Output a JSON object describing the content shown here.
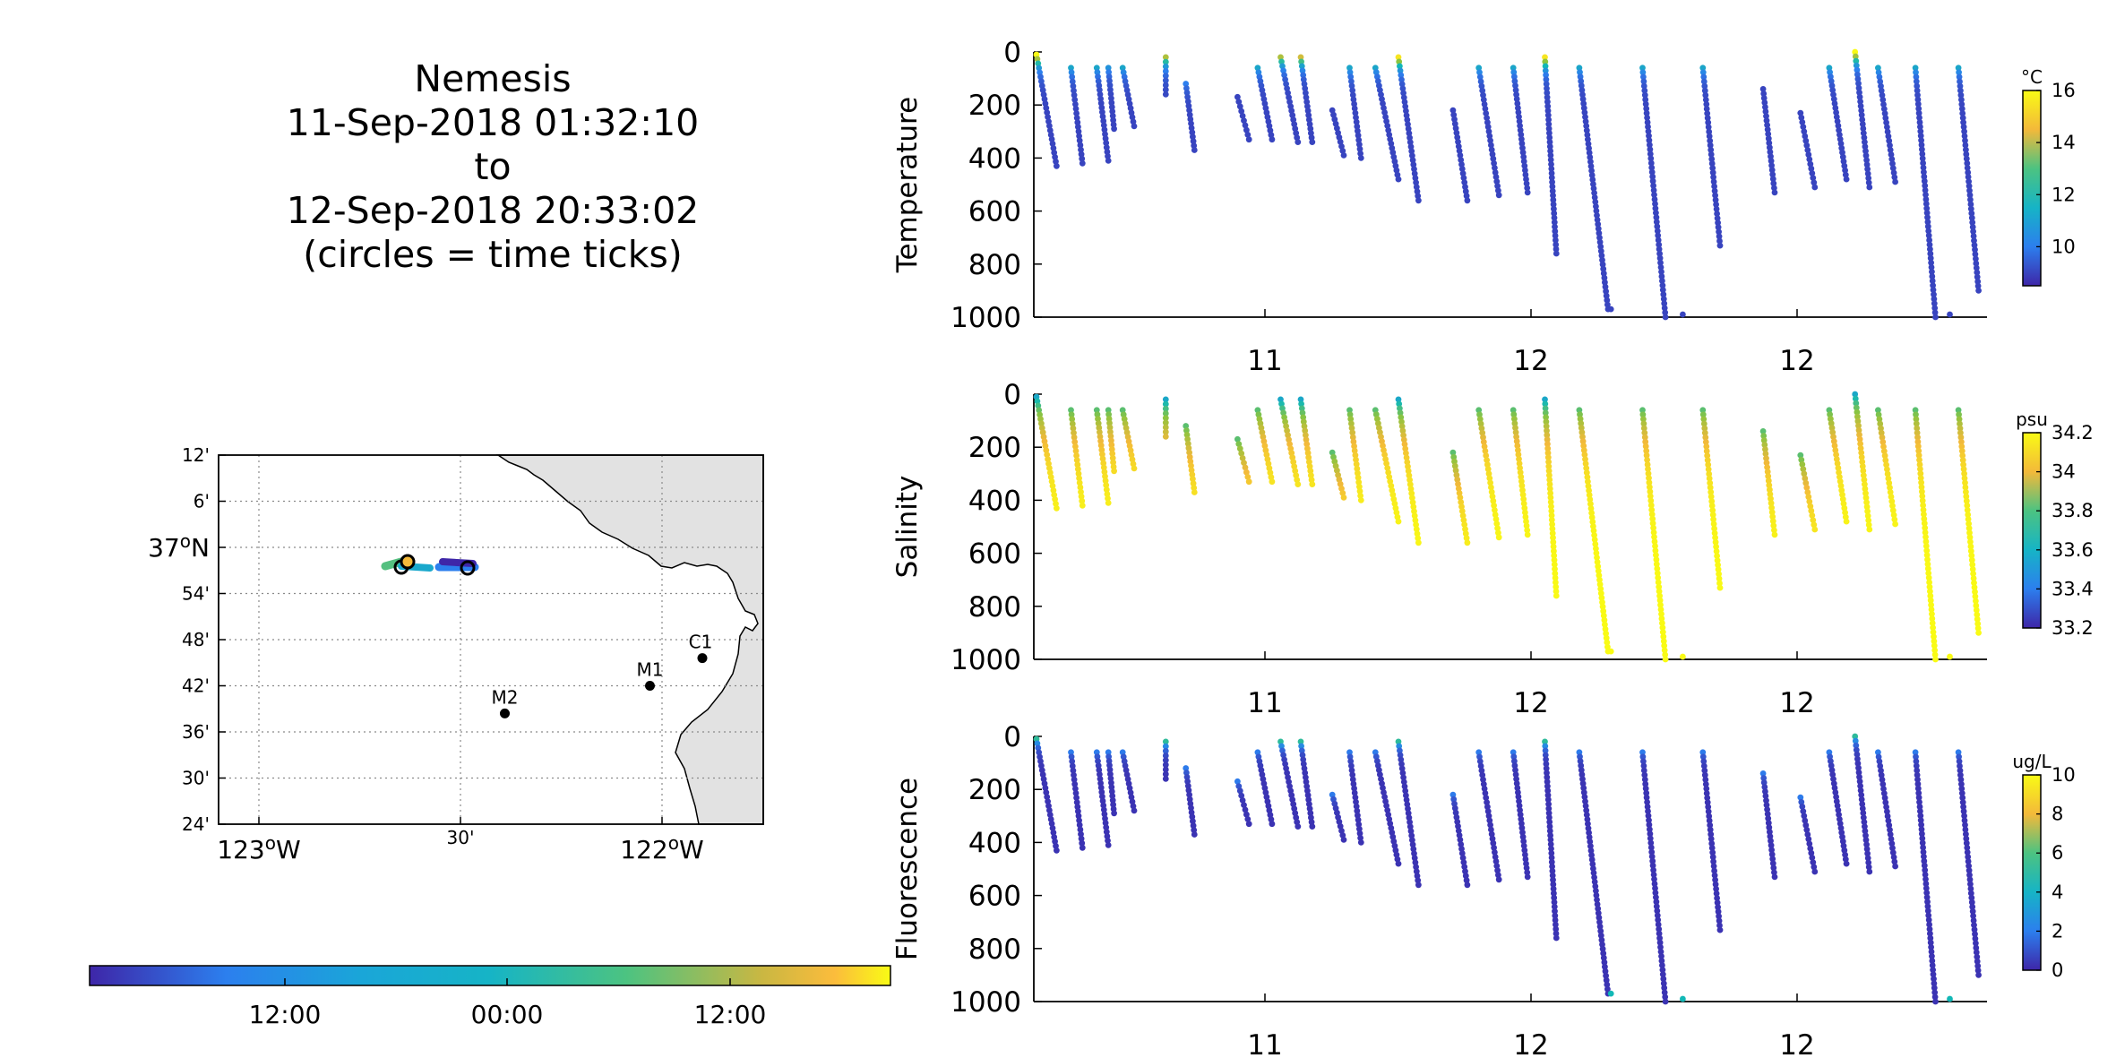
{
  "title": {
    "vehicle": "Nemesis",
    "start": "11-Sep-2018 01:32:10",
    "to": "to",
    "end": "12-Sep-2018 20:33:02",
    "note": "(circles = time ticks)"
  },
  "map": {
    "lat_ticks": [
      "12'",
      "6'",
      "37°N",
      "54'",
      "48'",
      "42'",
      "36'",
      "30'",
      "24'"
    ],
    "lon_ticks": [
      "123°W",
      "30'",
      "122°W"
    ],
    "stations": [
      {
        "label": "M2",
        "lon": -122.39,
        "lat": 36.7
      },
      {
        "label": "M1",
        "lon": -122.03,
        "lat": 36.75
      },
      {
        "label": "C1",
        "lon": -121.9,
        "lat": 36.8
      }
    ]
  },
  "time_colorbar": {
    "ticks": [
      "12:00",
      "00:00",
      "12:00"
    ],
    "colors": [
      "#3e26a8",
      "#2c7fee",
      "#16b4c6",
      "#4cc381",
      "#cab742",
      "#fbbc3c",
      "#f9fb15"
    ]
  },
  "chart_data": [
    {
      "type": "scatter",
      "ylabel": "Temperature",
      "colorbar_unit": "°C",
      "colorbar_ticks": [
        "16",
        "14",
        "12",
        "10"
      ],
      "clim": [
        8.5,
        16
      ],
      "yticks": [
        "0",
        "200",
        "400",
        "600",
        "800",
        "1000"
      ],
      "xticks": [
        "11",
        "12",
        "12"
      ],
      "ylim": [
        1000,
        0
      ],
      "colors": [
        "#3e26a8",
        "#2c7fee",
        "#12b8b6",
        "#8cc43f",
        "#f3b93a",
        "#f9fb15"
      ],
      "x_span": [
        0,
        28
      ],
      "profiles": [
        {
          "x": 0.0,
          "xend": 0.7,
          "top": 10,
          "bottom": 430,
          "surface": 16
        },
        {
          "x": 1.2,
          "xend": 1.6,
          "top": 60,
          "bottom": 420,
          "surface": 11
        },
        {
          "x": 2.1,
          "xend": 2.5,
          "top": 60,
          "bottom": 410,
          "surface": 11
        },
        {
          "x": 2.5,
          "xend": 2.7,
          "top": 60,
          "bottom": 290,
          "surface": 10.5
        },
        {
          "x": 3.0,
          "xend": 3.4,
          "top": 60,
          "bottom": 280,
          "surface": 11
        },
        {
          "x": 4.5,
          "xend": 4.5,
          "top": 20,
          "bottom": 160,
          "surface": 13.5
        },
        {
          "x": 5.2,
          "xend": 5.5,
          "top": 120,
          "bottom": 370,
          "surface": 10
        },
        {
          "x": 7.0,
          "xend": 7.4,
          "top": 170,
          "bottom": 330,
          "surface": 9
        },
        {
          "x": 7.7,
          "xend": 8.2,
          "top": 60,
          "bottom": 330,
          "surface": 11
        },
        {
          "x": 8.5,
          "xend": 9.1,
          "top": 20,
          "bottom": 340,
          "surface": 13.5
        },
        {
          "x": 9.2,
          "xend": 9.6,
          "top": 20,
          "bottom": 340,
          "surface": 14
        },
        {
          "x": 10.3,
          "xend": 10.7,
          "top": 220,
          "bottom": 390,
          "surface": 9
        },
        {
          "x": 10.9,
          "xend": 11.3,
          "top": 60,
          "bottom": 400,
          "surface": 11
        },
        {
          "x": 11.8,
          "xend": 12.6,
          "top": 60,
          "bottom": 480,
          "surface": 11
        },
        {
          "x": 12.6,
          "xend": 13.3,
          "top": 20,
          "bottom": 560,
          "surface": 15.5
        },
        {
          "x": 14.5,
          "xend": 15.0,
          "top": 220,
          "bottom": 560,
          "surface": 9
        },
        {
          "x": 15.4,
          "xend": 16.1,
          "top": 60,
          "bottom": 540,
          "surface": 11
        },
        {
          "x": 16.6,
          "xend": 17.1,
          "top": 60,
          "bottom": 530,
          "surface": 11
        },
        {
          "x": 17.7,
          "xend": 18.1,
          "top": 20,
          "bottom": 760,
          "surface": 15.5
        },
        {
          "x": 18.9,
          "xend": 19.9,
          "top": 60,
          "bottom": 970,
          "surface": 11
        },
        {
          "x": 21.1,
          "xend": 21.9,
          "top": 60,
          "bottom": 1000,
          "surface": 11
        },
        {
          "x": 23.2,
          "xend": 23.8,
          "top": 60,
          "bottom": 730,
          "surface": 11
        },
        {
          "x": 25.3,
          "xend": 25.7,
          "top": 140,
          "bottom": 530,
          "surface": 9
        },
        {
          "x": 26.6,
          "xend": 27.1,
          "top": 230,
          "bottom": 510,
          "surface": 9
        },
        {
          "x": 27.6,
          "xend": 28.2,
          "top": 60,
          "bottom": 480,
          "surface": 11
        },
        {
          "x": 28.5,
          "xend": 29.0,
          "top": 0,
          "bottom": 510,
          "surface": 16
        },
        {
          "x": 29.3,
          "xend": 29.9,
          "top": 60,
          "bottom": 490,
          "surface": 11
        },
        {
          "x": 30.6,
          "xend": 31.3,
          "top": 60,
          "bottom": 1000,
          "surface": 11
        },
        {
          "x": 32.1,
          "xend": 32.8,
          "top": 60,
          "bottom": 900,
          "surface": 11
        }
      ],
      "isolated_points": [
        {
          "x": 20.0,
          "depth": 970,
          "value": 9
        },
        {
          "x": 22.5,
          "depth": 990,
          "value": 9
        },
        {
          "x": 31.8,
          "depth": 990,
          "value": 9
        }
      ]
    },
    {
      "type": "scatter",
      "ylabel": "Salinity",
      "colorbar_unit": "psu",
      "colorbar_ticks": [
        "34.2",
        "34",
        "33.8",
        "33.6",
        "33.4",
        "33.2"
      ],
      "clim": [
        33.2,
        34.2
      ],
      "yticks": [
        "0",
        "200",
        "400",
        "600",
        "800",
        "1000"
      ],
      "xticks": [
        "11",
        "12",
        "12"
      ],
      "ylim": [
        1000,
        0
      ],
      "colors": [
        "#3e26a8",
        "#2c7fee",
        "#12b8b6",
        "#8cc43f",
        "#f3b93a",
        "#f9fb15"
      ],
      "surface_value": 33.6,
      "deep_value": 34.2
    },
    {
      "type": "scatter",
      "ylabel": "Fluorescence",
      "colorbar_unit": "ug/L",
      "colorbar_ticks": [
        "10",
        "8",
        "6",
        "4",
        "2",
        "0"
      ],
      "clim": [
        0,
        10
      ],
      "yticks": [
        "0",
        "200",
        "400",
        "600",
        "800",
        "1000"
      ],
      "xticks": [
        "11",
        "12",
        "12"
      ],
      "ylim": [
        1000,
        0
      ],
      "colors": [
        "#3e26a8",
        "#2c7fee",
        "#12b8b6",
        "#8cc43f",
        "#f3b93a",
        "#f9fb15"
      ],
      "surface_value": 3.5,
      "deep_value": 0.3
    }
  ]
}
